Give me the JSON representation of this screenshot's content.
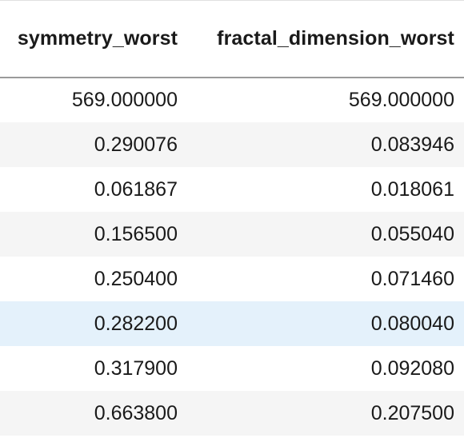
{
  "table": {
    "columns": [
      "symmetry_worst",
      "fractal_dimension_worst"
    ],
    "rows": [
      [
        "569.000000",
        "569.000000"
      ],
      [
        "0.290076",
        "0.083946"
      ],
      [
        "0.061867",
        "0.018061"
      ],
      [
        "0.156500",
        "0.055040"
      ],
      [
        "0.250400",
        "0.071460"
      ],
      [
        "0.282200",
        "0.080040"
      ],
      [
        "0.317900",
        "0.092080"
      ],
      [
        "0.663800",
        "0.207500"
      ]
    ],
    "hovered_row_index": 5
  },
  "colors": {
    "row_stripe": "#f5f5f5",
    "row_hover": "#e4f1fb",
    "header_rule": "#9a9a9a"
  }
}
